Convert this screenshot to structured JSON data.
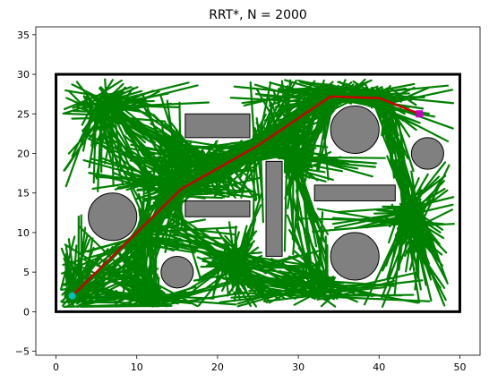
{
  "chart_data": {
    "type": "scatter",
    "title": "RRT*, N = 2000",
    "xlabel": "",
    "ylabel": "",
    "xlim": [
      -2.5,
      52.5
    ],
    "ylim": [
      -5.5,
      36
    ],
    "xticks": [
      0,
      10,
      20,
      30,
      40,
      50
    ],
    "yticks": [
      -5,
      0,
      5,
      10,
      15,
      20,
      25,
      30,
      35
    ],
    "grid": false,
    "colors": {
      "tree": "#008000",
      "path": "#cc0000",
      "obstacle": "#808080",
      "start": "#00bfbf",
      "goal": "#bf00bf",
      "boundary": "#000000"
    },
    "boundary": {
      "x0": 0,
      "y0": 0,
      "x1": 50,
      "y1": 30
    },
    "start": [
      2,
      2
    ],
    "goal": [
      45,
      25
    ],
    "circle_obstacles": [
      {
        "cx": 7,
        "cy": 12,
        "r": 3
      },
      {
        "cx": 15,
        "cy": 5,
        "r": 2
      },
      {
        "cx": 37,
        "cy": 23,
        "r": 3
      },
      {
        "cx": 37,
        "cy": 7,
        "r": 3
      },
      {
        "cx": 46,
        "cy": 20,
        "r": 2
      }
    ],
    "rect_obstacles": [
      {
        "x": 16,
        "y": 22,
        "w": 8,
        "h": 3
      },
      {
        "x": 16,
        "y": 12,
        "w": 8,
        "h": 2
      },
      {
        "x": 26,
        "y": 7,
        "w": 2,
        "h": 12
      },
      {
        "x": 32,
        "y": 14,
        "w": 10,
        "h": 2
      }
    ],
    "path": [
      [
        2,
        2
      ],
      [
        10,
        10
      ],
      [
        15.5,
        15.5
      ],
      [
        25,
        21
      ],
      [
        34,
        27.2
      ],
      [
        40,
        27
      ],
      [
        45,
        25
      ]
    ],
    "tree_sources": [
      [
        2,
        2
      ],
      [
        6,
        26
      ],
      [
        10,
        10
      ],
      [
        15.5,
        15.5
      ],
      [
        20,
        18
      ],
      [
        25,
        21
      ],
      [
        29,
        19
      ],
      [
        34,
        27.2
      ],
      [
        40,
        27
      ],
      [
        44,
        12
      ],
      [
        33,
        3
      ],
      [
        22,
        6
      ],
      [
        12,
        2
      ]
    ]
  }
}
